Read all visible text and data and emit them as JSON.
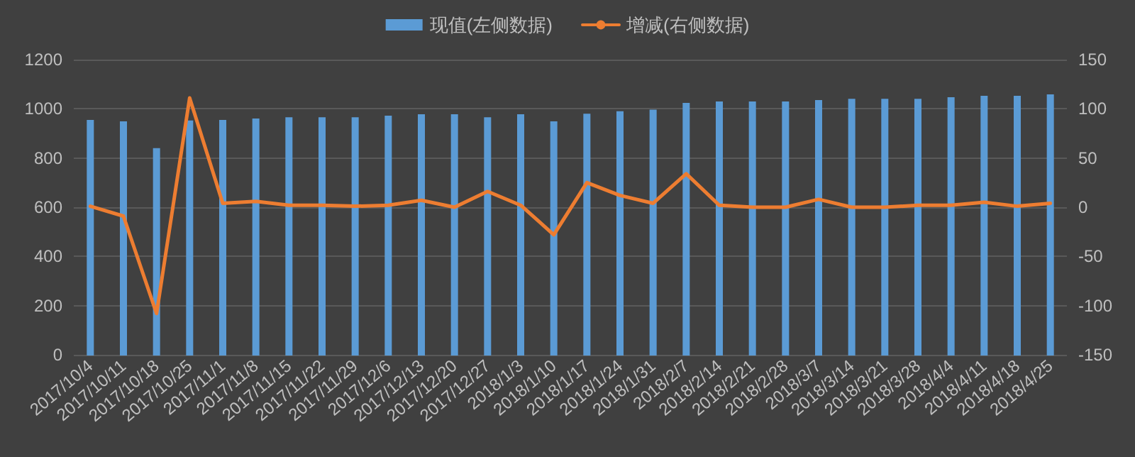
{
  "chart_data": {
    "type": "bar",
    "categories": [
      "2017/10/4",
      "2017/10/11",
      "2017/10/18",
      "2017/10/25",
      "2017/11/1",
      "2017/11/8",
      "2017/11/15",
      "2017/11/22",
      "2017/11/29",
      "2017/12/6",
      "2017/12/13",
      "2017/12/20",
      "2017/12/27",
      "2018/1/3",
      "2018/1/10",
      "2018/1/17",
      "2018/1/24",
      "2018/1/31",
      "2018/2/7",
      "2018/2/14",
      "2018/2/21",
      "2018/2/28",
      "2018/3/7",
      "2018/3/14",
      "2018/3/21",
      "2018/3/28",
      "2018/4/4",
      "2018/4/11",
      "2018/4/18",
      "2018/4/25"
    ],
    "series": [
      {
        "name": "现值(左侧数据)",
        "color": "#5b9bd5",
        "values": [
          952,
          946,
          837,
          950,
          952,
          958,
          963,
          963,
          963,
          969,
          975,
          975,
          963,
          975,
          946,
          977,
          987,
          994,
          1021,
          1027,
          1027,
          1027,
          1033,
          1038,
          1038,
          1038,
          1044,
          1050,
          1050,
          1056
        ]
      },
      {
        "name": "增减(右侧数据)",
        "type": "line",
        "axis": "y2",
        "color": "#ed7d31",
        "values": [
          1,
          -9,
          -108,
          111,
          4,
          6,
          2,
          2,
          1,
          2,
          7,
          0,
          16,
          2,
          -28,
          25,
          12,
          4,
          34,
          2,
          0,
          0,
          8,
          0,
          0,
          2,
          2,
          5,
          1,
          4
        ]
      }
    ],
    "ylim": [
      0,
      1200
    ],
    "yticks": [
      0,
      200,
      400,
      600,
      800,
      1000,
      1200
    ],
    "y2lim": [
      -150,
      150
    ],
    "y2ticks": [
      -150,
      -100,
      -50,
      0,
      50,
      100,
      150
    ],
    "grid": "y",
    "legend": "top",
    "marker": "none",
    "line_style": "solid"
  }
}
